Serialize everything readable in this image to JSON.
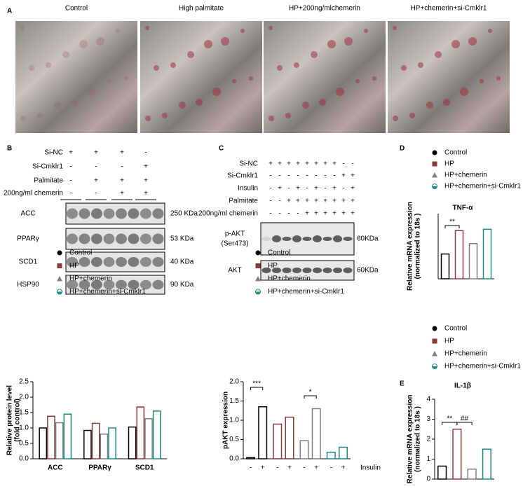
{
  "panel_labels": [
    "A",
    "B",
    "C",
    "D",
    "E"
  ],
  "micrographs": [
    "Control",
    "High palmitate",
    "HP+200ng/mlchemerin",
    "HP+chemerin+si-Cmklr1"
  ],
  "blot_b": {
    "conditions": [
      "Si-NC",
      "Si-Cmklr1",
      "Palmitate",
      "200ng/ml chemerin"
    ],
    "signs": [
      [
        "+",
        "+",
        "+",
        "-"
      ],
      [
        "-",
        "-",
        "-",
        "+"
      ],
      [
        "-",
        "+",
        "+",
        "+"
      ],
      [
        "-",
        "-",
        "+",
        "+"
      ]
    ],
    "bands": [
      "ACC",
      "PPARγ",
      "SCD1",
      "HSP90"
    ],
    "sizes": [
      "250 KDa",
      "53 KDa",
      "40 KDa",
      "90 KDa"
    ]
  },
  "blot_c": {
    "conditions": [
      "Si-NC",
      "Si-Cmklr1",
      "Insulin",
      "Palmitate",
      "200ng/ml chemerin"
    ],
    "signs": [
      [
        "+",
        "+",
        "+",
        "+",
        "+",
        "+",
        "+",
        "+",
        "-",
        "-"
      ],
      [
        "-",
        "-",
        "-",
        "-",
        "-",
        "-",
        "-",
        "-",
        "+",
        "+"
      ],
      [
        "-",
        "+",
        "-",
        "+",
        "-",
        "+",
        "-",
        "+",
        "-",
        "+"
      ],
      [
        "-",
        "-",
        "+",
        "+",
        "+",
        "+",
        "+",
        "+",
        "+",
        "+"
      ],
      [
        "-",
        "-",
        "-",
        "-",
        "+",
        "+",
        "+",
        "+",
        "+",
        "+"
      ]
    ],
    "bands": [
      [
        "p-AKT",
        "(Ser473)"
      ],
      [
        "AKT"
      ]
    ],
    "sizes": [
      "60KDa",
      "60KDa"
    ]
  },
  "chart_data": [
    {
      "type": "bar",
      "ylabel": [
        "Relative protein level",
        "(fold control)"
      ],
      "categories": [
        "ACC",
        "PPARγ",
        "SCD1"
      ],
      "ylim": [
        0,
        2.5
      ],
      "yticks": [
        {
          "value": 0,
          "label": "0.0"
        },
        0.5,
        {
          "value": 1,
          "label": "1.0"
        },
        1.5,
        {
          "value": 2,
          "label": "2.0"
        },
        2.5
      ],
      "series": [
        {
          "name": "Control",
          "color": "#000000",
          "marker": "circle",
          "values": [
            1.0,
            0.92,
            1.03
          ]
        },
        {
          "name": "HP",
          "color": "#8b3a3a",
          "marker": "square",
          "values": [
            1.38,
            1.15,
            1.68
          ]
        },
        {
          "name": "HP+chemerin",
          "color": "#7f7f7f",
          "marker": "triangle",
          "values": [
            1.17,
            0.8,
            1.3
          ]
        },
        {
          "name": "HP+chemerin+si-Cmklr1",
          "color": "#1a8a8a",
          "marker": "half-circle",
          "values": [
            1.45,
            1.0,
            1.55
          ]
        }
      ]
    },
    {
      "type": "bar",
      "ylabel": [
        "pAKT expression"
      ],
      "xlabel": "Insulin",
      "categories": [
        "-",
        "+"
      ],
      "ylim": [
        0,
        2.0
      ],
      "yticks": [
        {
          "value": 0,
          "label": "0.0"
        },
        0.5,
        {
          "value": 1,
          "label": "1.0"
        },
        1.5,
        {
          "value": 2,
          "label": "2.0"
        }
      ],
      "series": [
        {
          "name": "Control",
          "color": "#000000",
          "marker": "circle",
          "values": [
            0.03,
            1.35
          ]
        },
        {
          "name": "HP",
          "color": "#8b3a3a",
          "marker": "square",
          "values": [
            0.9,
            1.08
          ]
        },
        {
          "name": "HP+chemerin",
          "color": "#7f7f7f",
          "marker": "triangle",
          "values": [
            0.47,
            1.3
          ]
        },
        {
          "name": "HP+chemerin+si-Cmklr1",
          "color": "#1a8a8a",
          "marker": "half-circle",
          "values": [
            0.17,
            0.3
          ]
        }
      ],
      "annotations": [
        "***",
        "*"
      ]
    },
    {
      "type": "bar",
      "title": "TNF-α",
      "ylabel": [
        "Relative mRNA expression",
        "(normalized to 18s )"
      ],
      "ylim": [
        0,
        2.5
      ],
      "series": [
        {
          "name": "Control",
          "color": "#000000",
          "marker": "circle",
          "values": [
            0.95
          ]
        },
        {
          "name": "HP",
          "color": "#8b3a3a",
          "marker": "square",
          "values": [
            1.85
          ]
        },
        {
          "name": "HP+chemerin",
          "color": "#7f7f7f",
          "marker": "triangle",
          "values": [
            1.35
          ]
        },
        {
          "name": "HP+chemerin+si-Cmklr1",
          "color": "#1a8a8a",
          "marker": "half-circle",
          "values": [
            1.9
          ]
        }
      ],
      "annotations": [
        "**"
      ]
    },
    {
      "type": "bar",
      "title": "IL-1β",
      "ylabel": [
        "Relative mRNA expression",
        "(normalized to 18s )"
      ],
      "ylim": [
        0,
        4
      ],
      "yticks": [
        0,
        1,
        2,
        3,
        4
      ],
      "series": [
        {
          "name": "Control",
          "color": "#000000",
          "marker": "circle",
          "values": [
            0.65
          ]
        },
        {
          "name": "HP",
          "color": "#8b3a3a",
          "marker": "square",
          "values": [
            2.5
          ]
        },
        {
          "name": "HP+chemerin",
          "color": "#7f7f7f",
          "marker": "triangle",
          "values": [
            0.5
          ]
        },
        {
          "name": "HP+chemerin+si-Cmklr1",
          "color": "#1a8a8a",
          "marker": "half-circle",
          "values": [
            1.5
          ]
        }
      ],
      "annotations": [
        "**",
        "##"
      ]
    }
  ]
}
